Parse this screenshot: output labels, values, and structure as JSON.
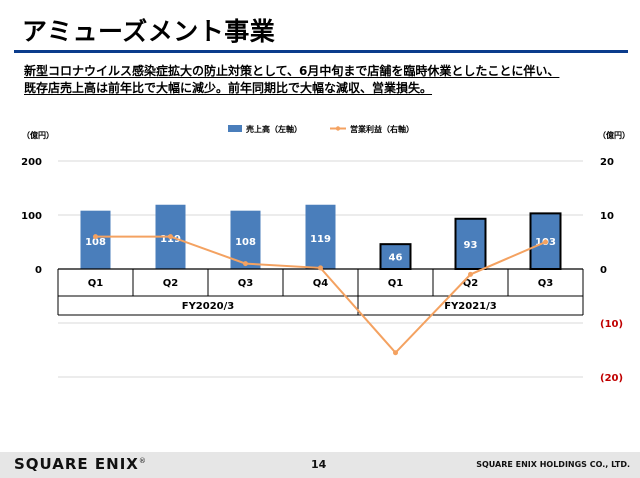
{
  "header": {
    "title": "アミューズメント事業",
    "subtitle_lines": [
      "新型コロナウイルス感染症拡大の防止対策として、6月中旬まで店舗を臨時休業としたことに伴い、",
      "既存店売上高は前年比で大幅に減少。前年同期比で大幅な減収、営業損失。"
    ]
  },
  "chart_data": {
    "type": "bar",
    "categories": [
      "Q1",
      "Q2",
      "Q3",
      "Q4",
      "Q1",
      "Q2",
      "Q3"
    ],
    "groups": [
      {
        "label": "FY2020/3",
        "categories": [
          "Q1",
          "Q2",
          "Q3",
          "Q4"
        ]
      },
      {
        "label": "FY2021/3",
        "categories": [
          "Q1",
          "Q2",
          "Q3"
        ]
      }
    ],
    "series": [
      {
        "name": "売上高（左軸）",
        "type": "bar",
        "axis": "left",
        "values": [
          108,
          119,
          108,
          119,
          46,
          93,
          103
        ],
        "color": "#4a7ebb"
      },
      {
        "name": "営業利益（右軸）",
        "type": "line",
        "axis": "right",
        "values": [
          6.0,
          6.0,
          1.0,
          0.2,
          -15.5,
          -1.0,
          5.0
        ],
        "color": "#f4a261"
      }
    ],
    "left_axis": {
      "unit": "（億円）",
      "ticks": [
        "200",
        "100",
        "0"
      ],
      "range": [
        0,
        200
      ]
    },
    "right_axis": {
      "unit": "（億円）",
      "ticks": [
        "20",
        "10",
        "0",
        "(10)",
        "(20)"
      ],
      "range": [
        -20,
        20
      ]
    },
    "negative_tick_color": "#c00000",
    "bar_style_fy2021": "outlined",
    "legend_position": "top-center"
  },
  "footer": {
    "logo": "SQUARE ENIX",
    "logo_mark": "®",
    "page": "14",
    "company": "SQUARE ENIX HOLDINGS CO., LTD."
  }
}
